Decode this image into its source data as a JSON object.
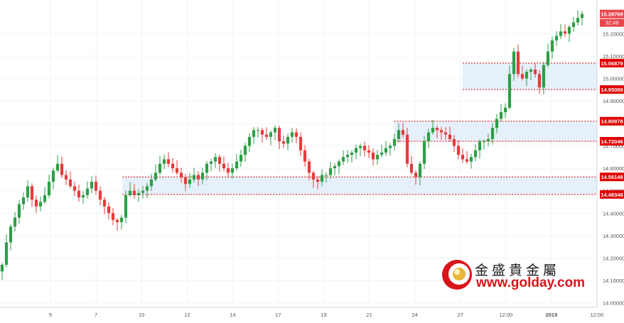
{
  "chart_data": {
    "type": "candlestick",
    "y_axis": {
      "range": [
        13.98,
        15.35
      ],
      "ticks": [
        "15.20000",
        "15.10000",
        "15.00000",
        "14.90000",
        "14.80000",
        "14.70000",
        "14.60000",
        "14.50000",
        "14.40000",
        "14.30000",
        "14.20000",
        "14.10000",
        "14.00000"
      ]
    },
    "x_axis": {
      "ticks": [
        "5",
        "7",
        "10",
        "12",
        "14",
        "17",
        "19",
        "21",
        "24",
        "27",
        "12:00",
        "2019",
        "12:00"
      ]
    },
    "price_labels": [
      {
        "label": "15.28769",
        "value": 15.28769,
        "color": "#e8474d"
      },
      {
        "label": "15.06879",
        "value": 15.06879,
        "color": "#e00000"
      },
      {
        "label": "14.95089",
        "value": 14.95089,
        "color": "#e00000"
      },
      {
        "label": "14.80978",
        "value": 14.80978,
        "color": "#e00000"
      },
      {
        "label": "14.72046",
        "value": 14.72046,
        "color": "#e00000"
      },
      {
        "label": "14.56148",
        "value": 14.56148,
        "color": "#e00000"
      },
      {
        "label": "14.48348",
        "value": 14.48348,
        "color": "#e00000"
      }
    ],
    "countdown_label": "32:48",
    "zones": [
      {
        "top": 15.06879,
        "bottom": 14.95089,
        "x_start": 15.5
      },
      {
        "top": 14.80978,
        "bottom": 14.72046,
        "x_start": 13.2
      },
      {
        "top": 14.56148,
        "bottom": 14.48348,
        "x_start": 4.1
      }
    ],
    "closes": [
      14.17,
      14.27,
      14.34,
      14.38,
      14.44,
      14.47,
      14.52,
      14.46,
      14.43,
      14.45,
      14.48,
      14.54,
      14.59,
      14.62,
      14.57,
      14.55,
      14.52,
      14.5,
      14.47,
      14.48,
      14.51,
      14.54,
      14.5,
      14.46,
      14.43,
      14.4,
      14.37,
      14.36,
      14.38,
      14.48,
      14.5,
      14.48,
      14.49,
      14.5,
      14.52,
      14.55,
      14.58,
      14.62,
      14.64,
      14.62,
      14.6,
      14.58,
      14.56,
      14.53,
      14.55,
      14.57,
      14.55,
      14.58,
      14.62,
      14.63,
      14.65,
      14.62,
      14.6,
      14.58,
      14.6,
      14.63,
      14.66,
      14.7,
      14.74,
      14.77,
      14.77,
      14.75,
      14.74,
      14.76,
      14.78,
      14.72,
      14.71,
      14.74,
      14.76,
      14.74,
      14.68,
      14.63,
      14.58,
      14.55,
      14.54,
      14.57,
      14.57,
      14.6,
      14.61,
      14.63,
      14.65,
      14.66,
      14.67,
      14.69,
      14.7,
      14.68,
      14.67,
      14.64,
      14.66,
      14.67,
      14.69,
      14.7,
      14.73,
      14.77,
      14.75,
      14.62,
      14.58,
      14.56,
      14.62,
      14.72,
      14.76,
      14.78,
      14.77,
      14.76,
      14.75,
      14.73,
      14.7,
      14.66,
      14.64,
      14.63,
      14.65,
      14.68,
      14.72,
      14.72,
      14.73,
      14.78,
      14.82,
      14.85,
      14.87,
      15.02,
      15.12,
      15.02,
      15.0,
      15.03,
      15.04,
      15.02,
      14.96,
      15.06,
      15.12,
      15.17,
      15.19,
      15.21,
      15.2,
      15.23,
      15.25,
      15.27,
      15.28769
    ],
    "x_range_bars": 140
  },
  "watermark": {
    "chinese": "金盛貴金屬",
    "url": "www.golday.com"
  },
  "colors": {
    "up": "#2e9e47",
    "down": "#e63b3b",
    "zone_fill": "#e5f0fb",
    "zone_line": "#e00000",
    "grid": "#f0f3fa",
    "axis_text": "#555555"
  }
}
